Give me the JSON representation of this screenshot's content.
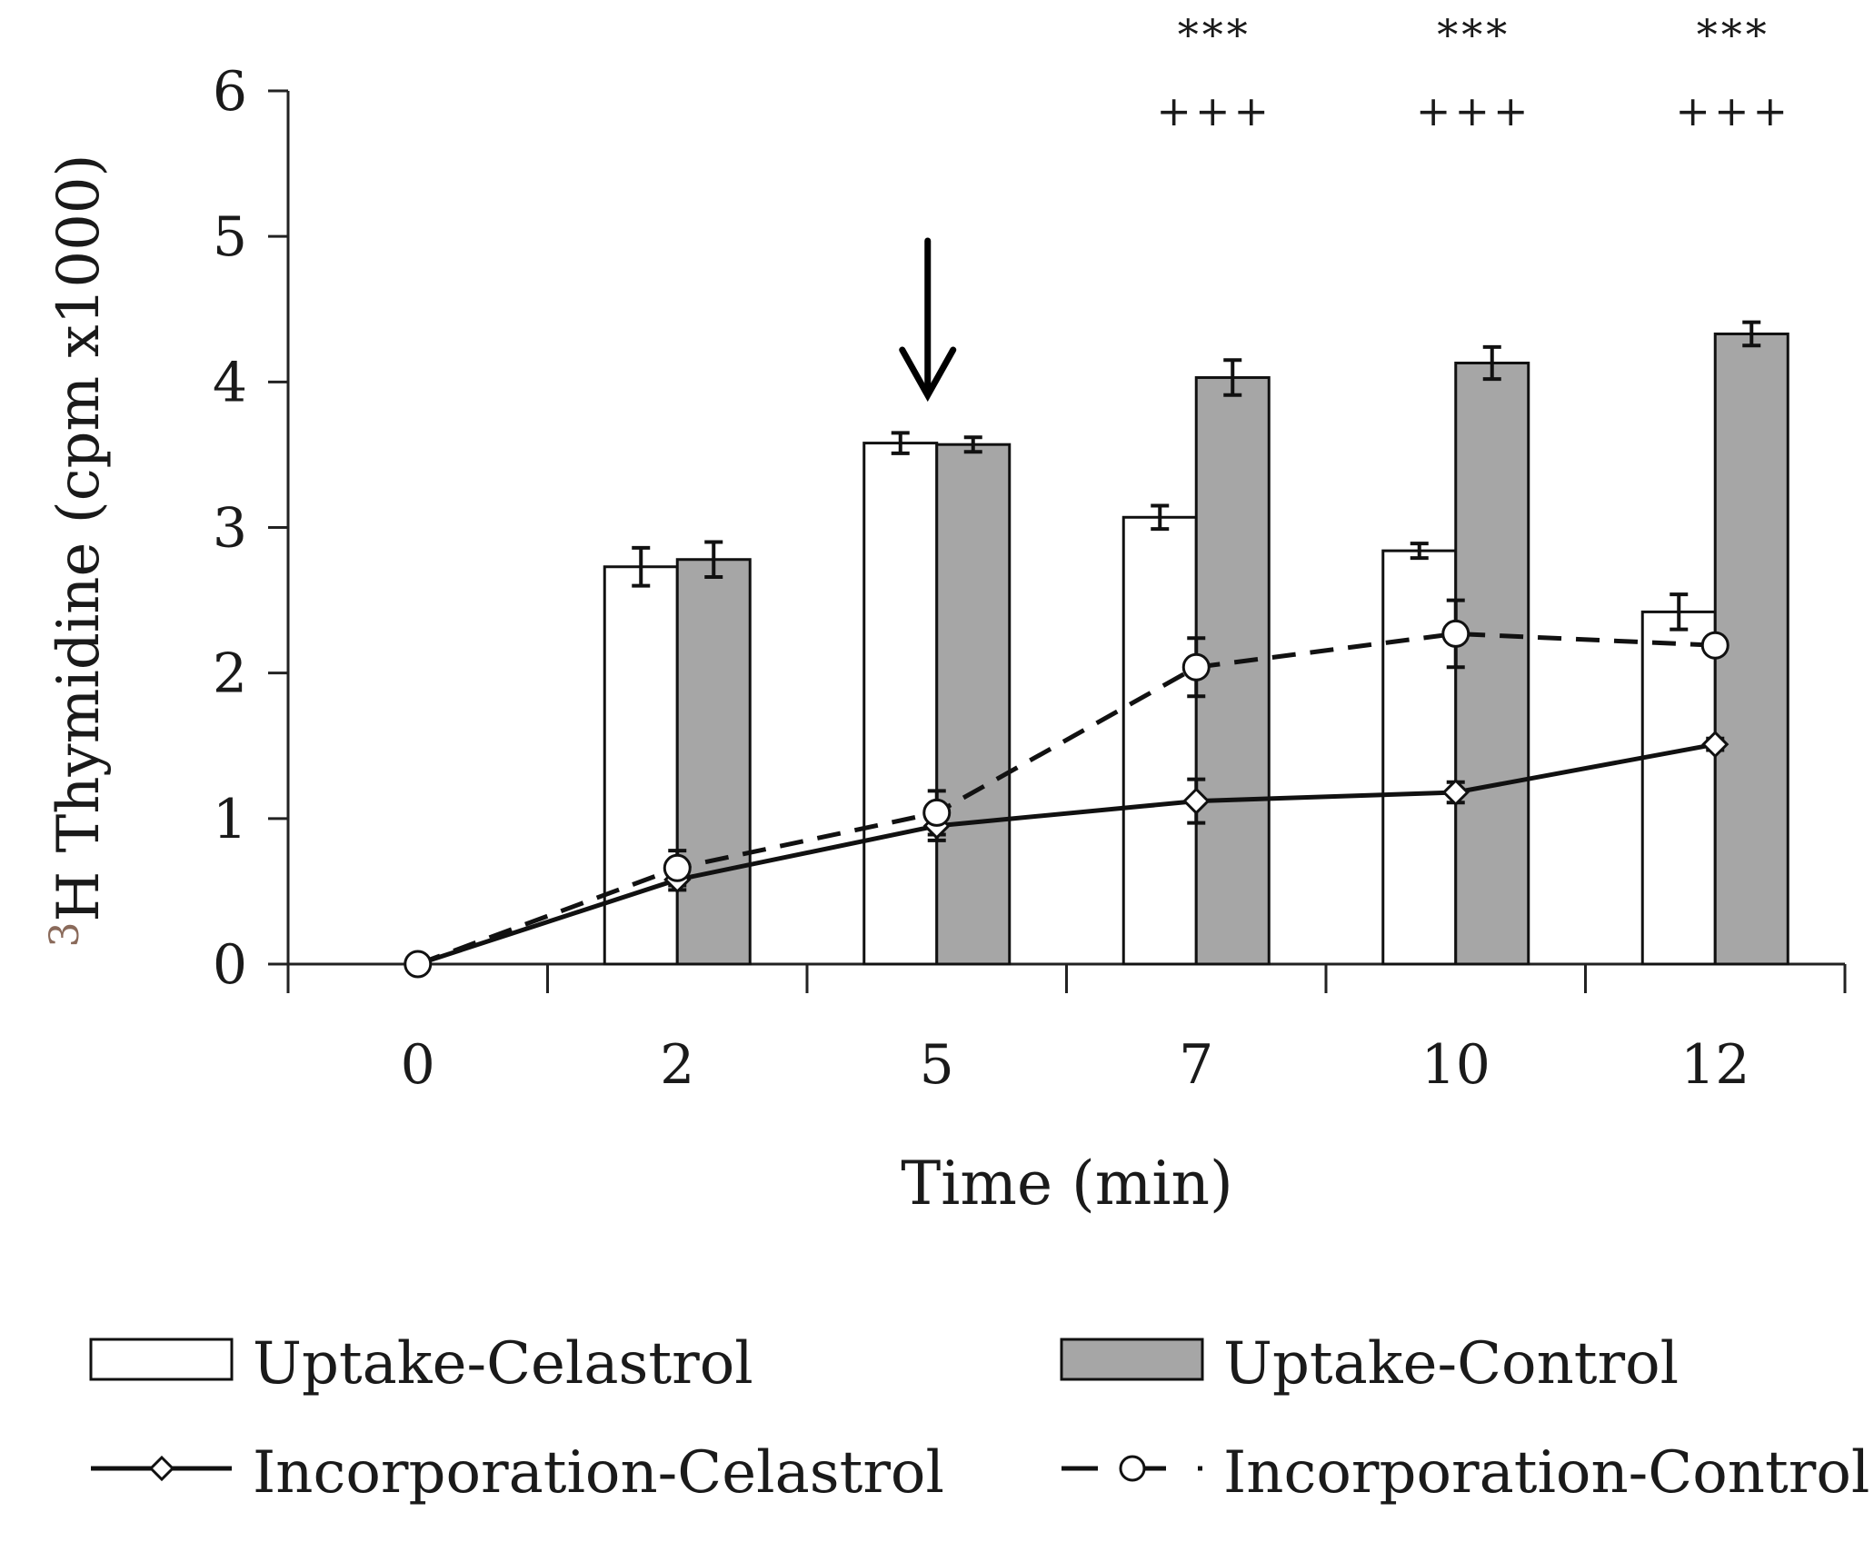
{
  "chart_data": {
    "type": "bar",
    "title": "",
    "xlabel": "Time (min)",
    "ylabel_superscript": "3",
    "ylabel": "H Thymidine (cpm x1000)",
    "categories": [
      "0",
      "2",
      "5",
      "7",
      "10",
      "12"
    ],
    "ylim": [
      0,
      6
    ],
    "yticks": [
      "0",
      "1",
      "2",
      "3",
      "4",
      "5",
      "6"
    ],
    "series": [
      {
        "name": "Uptake-Celastrol",
        "kind": "bar",
        "color": "#ffffff",
        "values": [
          null,
          2.73,
          3.58,
          3.07,
          2.84,
          2.42
        ],
        "errors": [
          null,
          0.13,
          0.07,
          0.08,
          0.05,
          0.12
        ]
      },
      {
        "name": "Uptake-Control",
        "kind": "bar",
        "color": "#a6a6a6",
        "values": [
          null,
          2.78,
          3.57,
          4.03,
          4.13,
          4.33
        ],
        "errors": [
          null,
          0.12,
          0.05,
          0.12,
          0.11,
          0.08
        ]
      },
      {
        "name": "Incorporation-Celastrol",
        "kind": "line",
        "style": "solid",
        "marker": "diamond",
        "values": [
          0.0,
          0.58,
          0.95,
          1.12,
          1.18,
          1.51
        ],
        "errors": [
          0.0,
          0.07,
          0.1,
          0.15,
          0.07,
          0.04
        ]
      },
      {
        "name": "Incorporation-Control",
        "kind": "line",
        "style": "dashed",
        "marker": "circle",
        "values": [
          0.0,
          0.66,
          1.04,
          2.04,
          2.27,
          2.19
        ],
        "errors": [
          0.0,
          0.12,
          0.15,
          0.2,
          0.23,
          0.04
        ]
      }
    ],
    "annotations": {
      "arrow_at_category": "5",
      "significance": [
        {
          "category": "7",
          "stars": "***",
          "plus": "+++"
        },
        {
          "category": "10",
          "stars": "***",
          "plus": "+++"
        },
        {
          "category": "12",
          "stars": "***",
          "plus": "+++"
        }
      ]
    },
    "legend": {
      "placement": "bottom",
      "entries": [
        "Uptake-Celastrol",
        "Uptake-Control",
        "Incorporation-Celastrol",
        "Incorporation-Control"
      ]
    }
  }
}
